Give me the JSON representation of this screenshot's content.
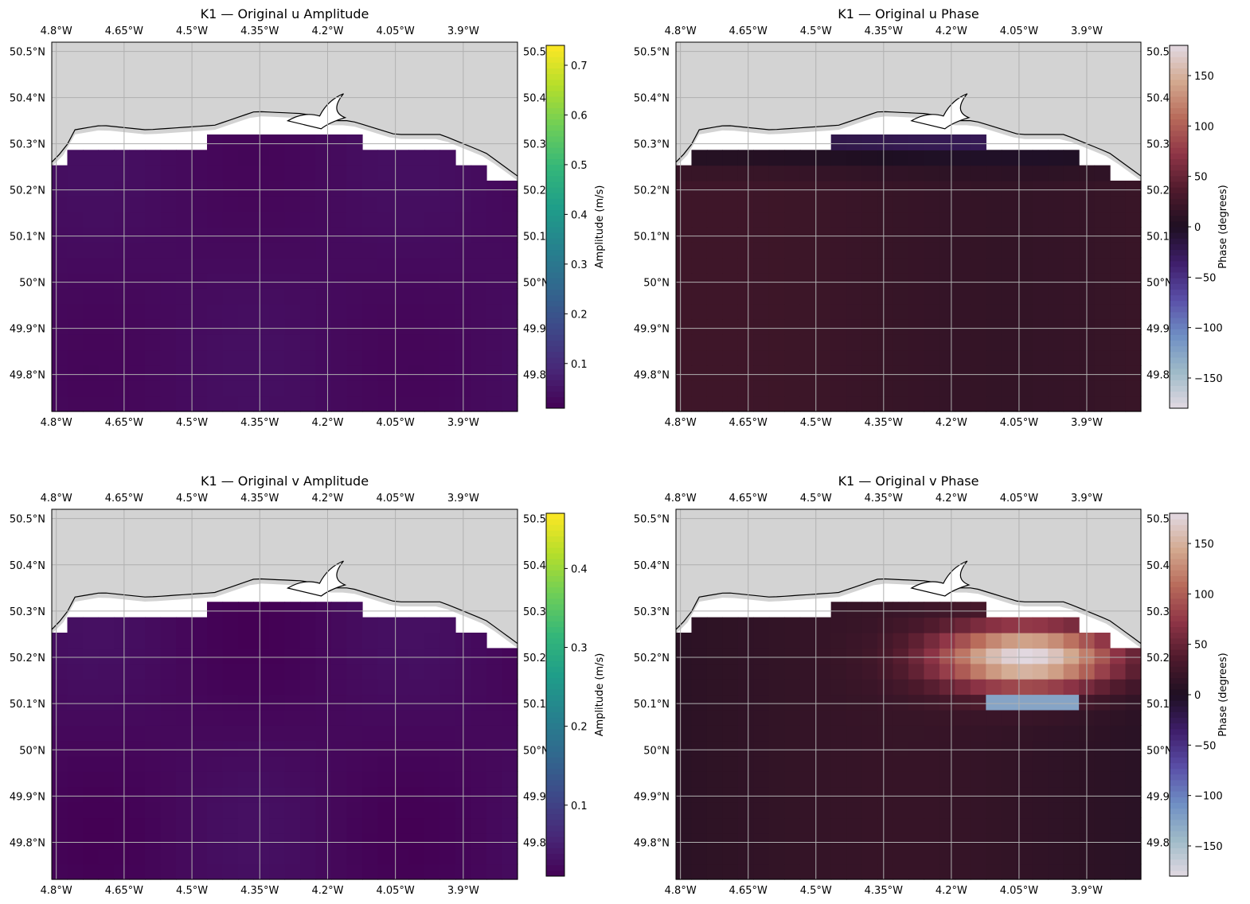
{
  "figure": {
    "colormaps": {
      "viridis": [
        "#440154",
        "#482878",
        "#3e4989",
        "#31688e",
        "#26828e",
        "#1f9e89",
        "#35b779",
        "#6ece58",
        "#b5de2b",
        "#fde725"
      ],
      "twilight_shifted": [
        "#e2d9e2",
        "#9fbbc8",
        "#6f8fc4",
        "#5a4fa8",
        "#3f1e6b",
        "#1e0f22",
        "#4e1a2c",
        "#8e3446",
        "#b86a5a",
        "#d3a98f",
        "#e2d9e2"
      ]
    },
    "land_color": "#d3d3d3",
    "grid_color": "#b0b0b0"
  },
  "chart_data": [
    {
      "id": "u_amp",
      "type": "heatmap",
      "title": "K1 — Original u Amplitude",
      "colorbar_label": "Amplitude (m/s)",
      "cmap": "viridis",
      "vmin": 0.01,
      "vmax": 0.74,
      "cb_ticks": [
        0.1,
        0.2,
        0.3,
        0.4,
        0.5,
        0.6,
        0.7
      ],
      "cb_tick_labels": [
        "0.1",
        "0.2",
        "0.3",
        "0.4",
        "0.5",
        "0.6",
        "0.7"
      ],
      "field": "amp",
      "base": 0.03,
      "lon_range": [
        -4.81,
        -3.78
      ],
      "lat_range": [
        49.72,
        50.52
      ],
      "x_ticks": [
        -4.8,
        -4.65,
        -4.5,
        -4.35,
        -4.2,
        -4.05,
        -3.9
      ],
      "x_tick_labels": [
        "4.8°W",
        "4.65°W",
        "4.5°W",
        "4.35°W",
        "4.2°W",
        "4.05°W",
        "3.9°W"
      ],
      "y_ticks": [
        49.8,
        49.9,
        50.0,
        50.1,
        50.2,
        50.3,
        50.4,
        50.5
      ],
      "y_tick_labels": [
        "49.8°N",
        "49.9°N",
        "50°N",
        "50.1°N",
        "50.2°N",
        "50.3°N",
        "50.4°N",
        "50.5°N"
      ],
      "right_tick_labels": [
        "49.8",
        "49.9",
        "50°N",
        "50.1",
        "50.2",
        "50.3",
        "50.4",
        "50.5"
      ]
    },
    {
      "id": "u_phase",
      "type": "heatmap",
      "title": "K1 — Original u Phase",
      "colorbar_label": "Phase (degrees)",
      "cmap": "twilight_shifted",
      "vmin": -180,
      "vmax": 180,
      "cb_ticks": [
        -150,
        -100,
        -50,
        0,
        50,
        100,
        150
      ],
      "cb_tick_labels": [
        "−150",
        "−100",
        "−50",
        "0",
        "50",
        "100",
        "150"
      ],
      "field": "uphase",
      "lon_range": [
        -4.81,
        -3.78
      ],
      "lat_range": [
        49.72,
        50.52
      ],
      "x_ticks": [
        -4.8,
        -4.65,
        -4.5,
        -4.35,
        -4.2,
        -4.05,
        -3.9
      ],
      "x_tick_labels": [
        "4.8°W",
        "4.65°W",
        "4.5°W",
        "4.35°W",
        "4.2°W",
        "4.05°W",
        "3.9°W"
      ],
      "y_ticks": [
        49.8,
        49.9,
        50.0,
        50.1,
        50.2,
        50.3,
        50.4,
        50.5
      ],
      "y_tick_labels": [
        "49.8°N",
        "49.9°N",
        "50°N",
        "50.1°N",
        "50.2°N",
        "50.3°N",
        "50.4°N",
        "50.5°N"
      ],
      "right_tick_labels": [
        "49.8",
        "49.9",
        "50°N",
        "50.1",
        "50.2",
        "50.3",
        "50.4",
        "50.5"
      ]
    },
    {
      "id": "v_amp",
      "type": "heatmap",
      "title": "K1 — Original v Amplitude",
      "colorbar_label": "Amplitude (m/s)",
      "cmap": "viridis",
      "vmin": 0.01,
      "vmax": 0.47,
      "cb_ticks": [
        0.1,
        0.2,
        0.3,
        0.4
      ],
      "cb_tick_labels": [
        "0.1",
        "0.2",
        "0.3",
        "0.4"
      ],
      "field": "amp",
      "base": 0.02,
      "lon_range": [
        -4.81,
        -3.78
      ],
      "lat_range": [
        49.72,
        50.52
      ],
      "x_ticks": [
        -4.8,
        -4.65,
        -4.5,
        -4.35,
        -4.2,
        -4.05,
        -3.9
      ],
      "x_tick_labels": [
        "4.8°W",
        "4.65°W",
        "4.5°W",
        "4.35°W",
        "4.2°W",
        "4.05°W",
        "3.9°W"
      ],
      "y_ticks": [
        49.8,
        49.9,
        50.0,
        50.1,
        50.2,
        50.3,
        50.4,
        50.5
      ],
      "y_tick_labels": [
        "49.8°N",
        "49.9°N",
        "50°N",
        "50.1°N",
        "50.2°N",
        "50.3°N",
        "50.4°N",
        "50.5°N"
      ],
      "right_tick_labels": [
        "49.8",
        "49.9",
        "50°N",
        "50.1",
        "50.2",
        "50.3",
        "50.4",
        "50.5"
      ]
    },
    {
      "id": "v_phase",
      "type": "heatmap",
      "title": "K1 — Original v Phase",
      "colorbar_label": "Phase (degrees)",
      "cmap": "twilight_shifted",
      "vmin": -180,
      "vmax": 180,
      "cb_ticks": [
        -150,
        -100,
        -50,
        0,
        50,
        100,
        150
      ],
      "cb_tick_labels": [
        "−150",
        "−100",
        "−50",
        "0",
        "50",
        "100",
        "150"
      ],
      "field": "vphase",
      "lon_range": [
        -4.81,
        -3.78
      ],
      "lat_range": [
        49.72,
        50.52
      ],
      "x_ticks": [
        -4.8,
        -4.65,
        -4.5,
        -4.35,
        -4.2,
        -4.05,
        -3.9
      ],
      "x_tick_labels": [
        "4.8°W",
        "4.65°W",
        "4.5°W",
        "4.35°W",
        "4.2°W",
        "4.05°W",
        "3.9°W"
      ],
      "y_ticks": [
        49.8,
        49.9,
        50.0,
        50.1,
        50.2,
        50.3,
        50.4,
        50.5
      ],
      "y_tick_labels": [
        "49.8°N",
        "49.9°N",
        "50°N",
        "50.1°N",
        "50.2°N",
        "50.3°N",
        "50.4°N",
        "50.5°N"
      ],
      "right_tick_labels": [
        "49.8",
        "49.9",
        "50°N",
        "50.1",
        "50.2",
        "50.3",
        "50.4",
        "50.5"
      ]
    }
  ]
}
